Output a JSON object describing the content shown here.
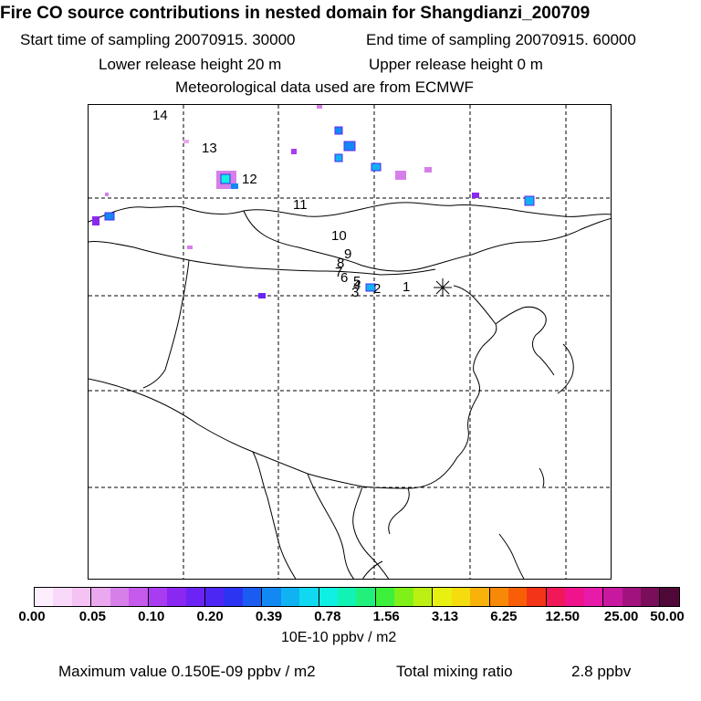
{
  "header": {
    "title": "Fire CO source contributions in nested domain for Shangdianzi_200709",
    "start_label": "Start time of sampling 20070915. 30000",
    "end_label": "End time of sampling 20070915. 60000",
    "lower_label": "Lower release height   20 m",
    "upper_label": "Upper release height    0 m",
    "met_label": "Meteorological data used are from ECMWF"
  },
  "map": {
    "station_marker": "asterisk-icon",
    "trajectory_labels": [
      "1",
      "2",
      "3",
      "4",
      "5",
      "6",
      "7",
      "8",
      "9",
      "10",
      "11",
      "12",
      "13",
      "14"
    ],
    "colors": {
      "coast": "#000000",
      "grid": "#000000"
    }
  },
  "colorbar": {
    "colors": [
      "#fdeefd",
      "#f9d9f9",
      "#f4c3f4",
      "#eca8ef",
      "#d77fe9",
      "#c65aec",
      "#a93cf0",
      "#8a28f2",
      "#6c24f4",
      "#4e26f4",
      "#2c34f2",
      "#1a5cf2",
      "#1288f2",
      "#10b2f2",
      "#0fd8f0",
      "#0ff0e2",
      "#12f2b4",
      "#22f07c",
      "#3df03c",
      "#80f018",
      "#bbf012",
      "#e8f012",
      "#f4dc0e",
      "#f8b20a",
      "#f88808",
      "#f85e08",
      "#f43418",
      "#f01858",
      "#f0148c",
      "#e81aaa",
      "#c818a0",
      "#a2127e",
      "#7a0e5a",
      "#500838"
    ],
    "tick_labels": [
      "0.00",
      "0.05",
      "0.10",
      "0.20",
      "0.39",
      "0.78",
      "1.56",
      "3.13",
      "6.25",
      "12.50",
      "25.00",
      "50.00"
    ],
    "units": "10E-10 ppbv / m2"
  },
  "footer": {
    "max_label": "Maximum value  0.150E-09 ppbv / m2",
    "total_label": "Total mixing ratio",
    "total_value": "2.8 ppbv"
  }
}
